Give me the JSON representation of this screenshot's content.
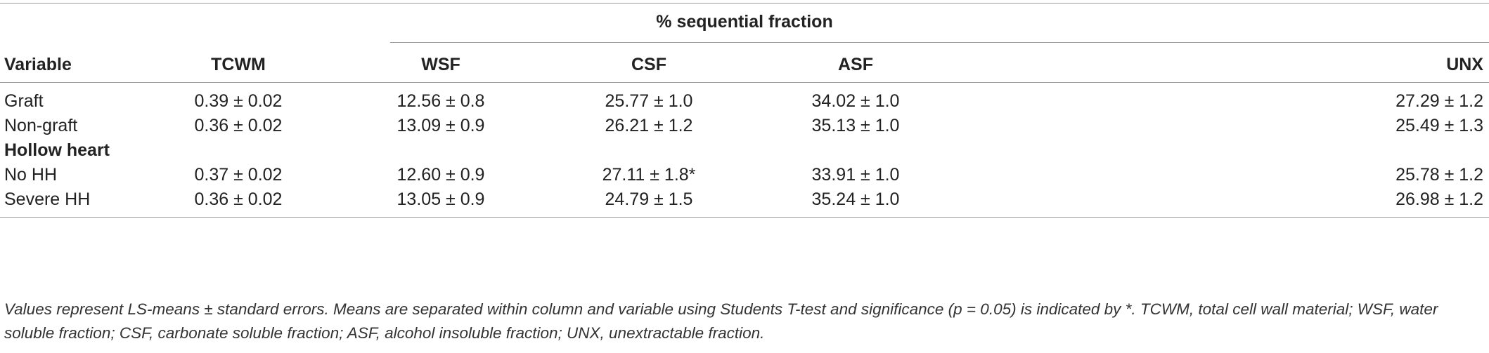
{
  "table": {
    "group_header": "% sequential fraction",
    "columns": [
      "Variable",
      "TCWM",
      "WSF",
      "CSF",
      "ASF",
      "UNX"
    ],
    "rows": [
      {
        "label": "Graft",
        "values": [
          "0.39 ± 0.02",
          "12.56 ± 0.8",
          "25.77 ± 1.0",
          "34.02 ± 1.0",
          "27.29 ± 1.2"
        ]
      },
      {
        "label": "Non-graft",
        "values": [
          "0.36 ± 0.02",
          "13.09 ± 0.9",
          "26.21 ± 1.2",
          "35.13 ± 1.0",
          "25.49 ± 1.3"
        ]
      }
    ],
    "section": {
      "title": "Hollow heart",
      "rows": [
        {
          "label": "No HH",
          "values": [
            "0.37 ± 0.02",
            "12.60 ± 0.9",
            "27.11 ± 1.8*",
            "33.91 ± 1.0",
            "25.78 ± 1.2"
          ]
        },
        {
          "label": "Severe HH",
          "values": [
            "0.36 ± 0.02",
            "13.05 ± 0.9",
            "24.79 ± 1.5",
            "35.24 ± 1.0",
            "26.98 ± 1.2"
          ]
        }
      ]
    }
  },
  "footnote": "Values represent LS-means ± standard errors. Means are separated within column and variable using Students T-test and significance (p = 0.05) is indicated by *. TCWM, total cell wall material; WSF, water soluble fraction; CSF, carbonate soluble fraction; ASF, alcohol insoluble fraction; UNX, unextractable fraction."
}
